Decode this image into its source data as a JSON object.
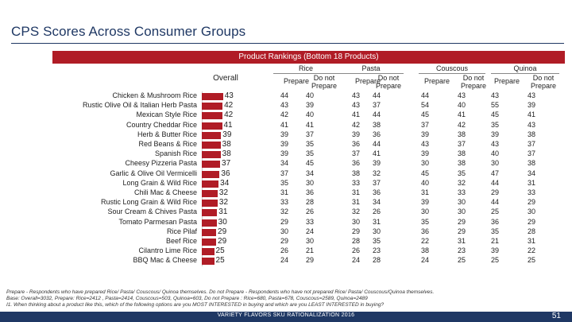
{
  "title": "CPS Scores Across Consumer Groups",
  "banner": "Product Rankings (Bottom 18 Products)",
  "overall_label": "Overall",
  "groups": [
    {
      "name": "Rice",
      "sub": [
        "Prepare",
        "Do not Prepare"
      ]
    },
    {
      "name": "Pasta",
      "sub": [
        "Prepare",
        "Do not Prepare"
      ]
    },
    {
      "name": "Couscous",
      "sub": [
        "Prepare",
        "Do not Prepare"
      ]
    },
    {
      "name": "Quinoa",
      "sub": [
        "Prepare",
        "Do not Prepare"
      ]
    }
  ],
  "chart_data": {
    "type": "bar",
    "orientation": "horizontal",
    "title": "Product Rankings (Bottom 18 Products)",
    "xlabel": "Overall",
    "xlim": [
      0,
      45
    ],
    "categories": [
      "Chicken & Mushroom Rice",
      "Rustic Olive Oil & Italian Herb Pasta",
      "Mexican Style Rice",
      "Country Cheddar Rice",
      "Herb & Butter Rice",
      "Red Beans & Rice",
      "Spanish Rice",
      "Cheesy Pizzeria Pasta",
      "Garlic & Olive Oil Vermicelli",
      "Long Grain & Wild Rice",
      "Chili Mac & Cheese",
      "Rustic Long Grain & Wild Rice",
      "Sour Cream & Chives Pasta",
      "Tomato Parmesan Pasta",
      "Rice Pilaf",
      "Beef Rice",
      "Cilantro Lime Rice",
      "BBQ Mac & Cheese"
    ],
    "values": [
      43,
      42,
      42,
      41,
      39,
      38,
      38,
      37,
      36,
      34,
      32,
      32,
      31,
      30,
      29,
      29,
      25,
      25
    ],
    "table": [
      [
        44,
        40,
        43,
        44,
        44,
        43,
        43,
        43
      ],
      [
        43,
        39,
        43,
        37,
        54,
        40,
        55,
        39
      ],
      [
        42,
        40,
        41,
        44,
        45,
        41,
        45,
        41
      ],
      [
        41,
        41,
        42,
        38,
        37,
        42,
        35,
        43
      ],
      [
        39,
        37,
        39,
        36,
        39,
        38,
        39,
        38
      ],
      [
        39,
        35,
        36,
        44,
        43,
        37,
        43,
        37
      ],
      [
        39,
        35,
        37,
        41,
        39,
        38,
        40,
        37
      ],
      [
        34,
        45,
        36,
        39,
        30,
        38,
        30,
        38
      ],
      [
        37,
        34,
        38,
        32,
        45,
        35,
        47,
        34
      ],
      [
        35,
        30,
        33,
        37,
        40,
        32,
        44,
        31
      ],
      [
        31,
        36,
        31,
        36,
        31,
        33,
        29,
        33
      ],
      [
        33,
        28,
        31,
        34,
        39,
        30,
        44,
        29
      ],
      [
        32,
        26,
        32,
        26,
        30,
        30,
        25,
        30
      ],
      [
        29,
        33,
        30,
        31,
        35,
        29,
        36,
        29
      ],
      [
        30,
        24,
        29,
        30,
        36,
        29,
        35,
        28
      ],
      [
        29,
        30,
        28,
        35,
        22,
        31,
        21,
        31
      ],
      [
        26,
        21,
        26,
        23,
        38,
        23,
        39,
        22
      ],
      [
        24,
        29,
        24,
        28,
        24,
        25,
        25,
        25
      ]
    ]
  },
  "footnotes": [
    "Prepare - Respondents who have prepared Rice/ Pasta/ Couscous/ Quinoa themselves. Do not Prepare - Respondents who have not prepared Rice/ Pasta/ Couscous/Quinoa themselves.",
    "Base: Overall=3032, Prepare: Rice=2412 , Pasta=2414, Couscous=503, Quinoa=603, Do not Prepare : Rice=680, Pasta=678, Couscous=2589, Quinoa=2489",
    "I1. When thinking about a product like this, which of the following options are you MOST INTERESTED in buying and which are you LEAST INTERESTED in buying?"
  ],
  "footer_text": "VARIETY FLAVORS SKU RATIONALIZATION 2016",
  "page_number": "51",
  "colors": {
    "accent": "#b01c26",
    "navy": "#1f3864"
  }
}
